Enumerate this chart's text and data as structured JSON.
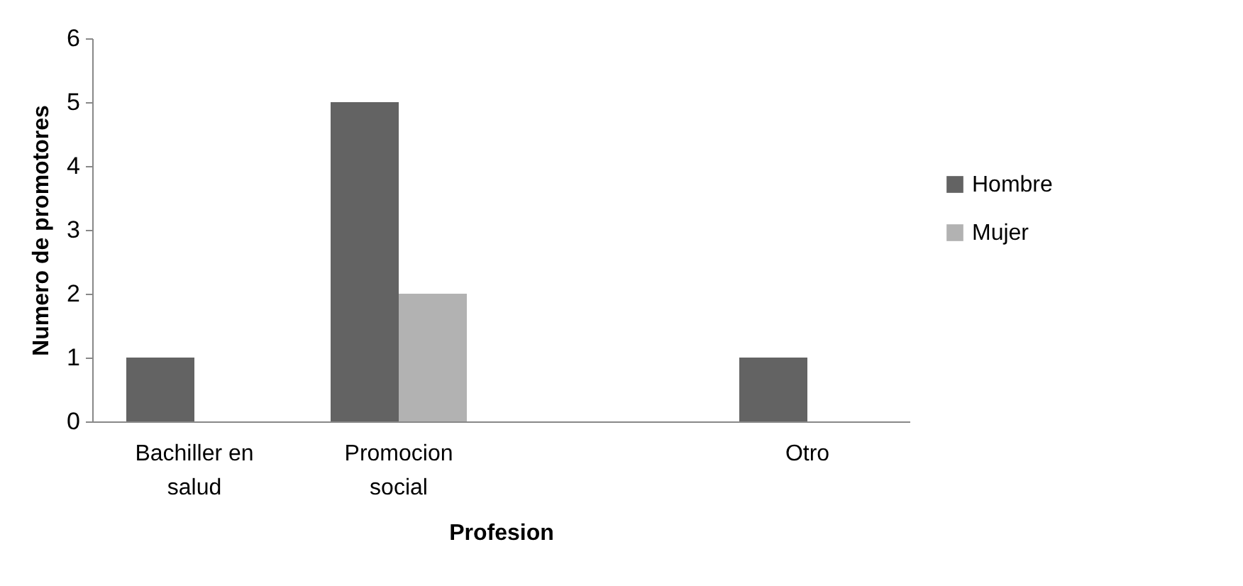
{
  "chart_data": {
    "type": "bar",
    "xlabel": "Profesion",
    "ylabel": "Numero de promotores",
    "categories": [
      "Bachiller en salud",
      "Promocion social",
      null,
      "Otro"
    ],
    "series": [
      {
        "name": "Hombre",
        "color": "#636363",
        "values": [
          1,
          5,
          null,
          1
        ]
      },
      {
        "name": "Mujer",
        "color": "#b2b2b2",
        "values": [
          null,
          2,
          null,
          null
        ]
      }
    ],
    "ylim": [
      0,
      6
    ],
    "yticks": [
      0,
      1,
      2,
      3,
      4,
      5,
      6
    ],
    "grid": false,
    "legend": "right"
  }
}
